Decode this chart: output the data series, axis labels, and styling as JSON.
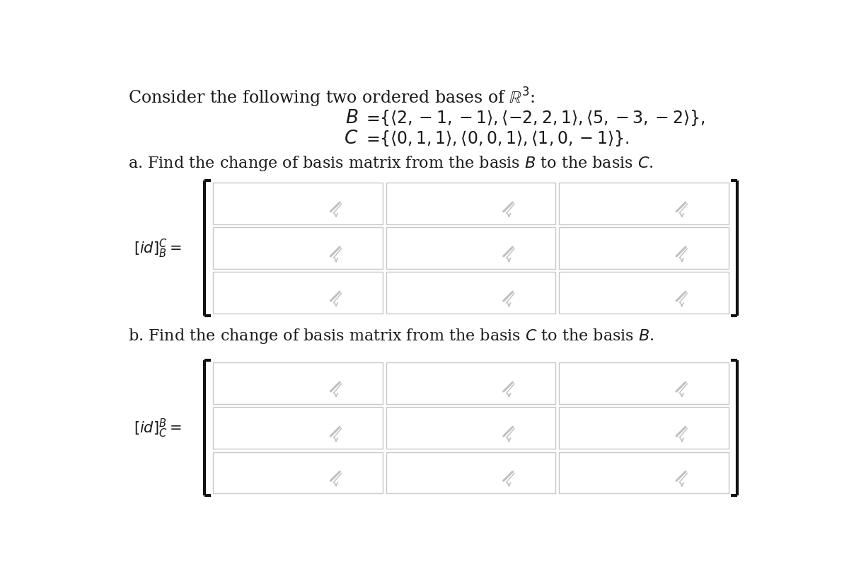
{
  "bg_color": "#ffffff",
  "title_text": "Consider the following two ordered bases of $\\mathbb{R}^3$:",
  "title_fontsize": 16,
  "basis_B_label": "$\\mathcal{B}$",
  "basis_C_label": "$\\mathcal{C}$",
  "basis_B_def": "$\\{\\langle 2, -1, -1\\rangle, \\langle -2, 2, 1\\rangle, \\langle 5, -3, -2\\rangle\\},$",
  "basis_C_def": "$\\{\\langle 0, 1, 1\\rangle, \\langle 0, 0, 1\\rangle, \\langle 1, 0, -1\\rangle\\}.$",
  "part_a_text_pre": "a. Find the change of basis matrix from the basis ",
  "part_a_B": "$\\mathcal{B}$",
  "part_a_mid": " to the basis ",
  "part_a_C": "$\\mathcal{C}$",
  "part_a_end": ".",
  "part_b_text_pre": "b. Find the change of basis matrix from the basis ",
  "part_b_C": "$\\mathcal{C}$",
  "part_b_mid": " to the basis ",
  "part_b_B": "$\\mathcal{B}$",
  "part_b_end": ".",
  "label_a": "$[id]^{\\mathcal{C}}_{\\mathcal{B}} =$",
  "label_b": "$[id]^{\\mathcal{B}}_{\\mathcal{C}} =$",
  "text_color": "#1a1a1a",
  "cell_bg": "#ffffff",
  "cell_border": "#c8c8c8",
  "bracket_color": "#111111",
  "pencil_color": "#c0c0c0",
  "arrow_color": "#b0b0b0"
}
